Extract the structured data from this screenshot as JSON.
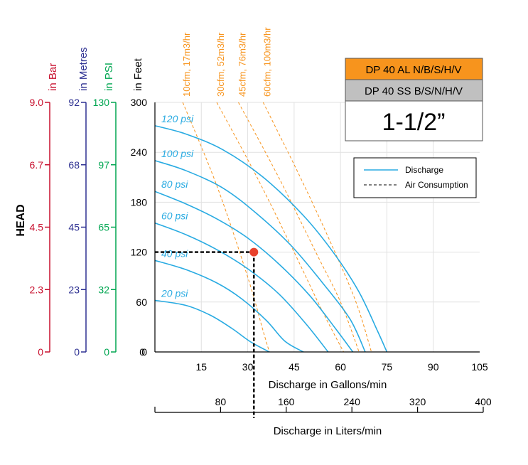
{
  "colors": {
    "bar": "#c8102e",
    "metres": "#2e3192",
    "psi": "#00a651",
    "feet": "#000000",
    "curve": "#29abe2",
    "air": "#f7941d",
    "orange_box": "#f7941d",
    "gray_box": "#c0c0c0",
    "point": "#e8412c"
  },
  "header": {
    "model_al": "DP 40 AL N/B/S/H/V",
    "model_ss": "DP 40 SS B/S/N/H/V",
    "size": "1-1/2”"
  },
  "legend": {
    "discharge": "Discharge",
    "air": "Air Consumption"
  },
  "chart_data": {
    "type": "line",
    "head_label": "HEAD",
    "x_title": "Discharge in Gallons/min",
    "x2_title": "Discharge in Liters/min",
    "xlim": [
      0,
      105
    ],
    "ylim": [
      0,
      300
    ],
    "x_ticks": [
      15,
      30,
      45,
      60,
      75,
      90,
      105
    ],
    "x2_ticks": [
      80,
      160,
      240,
      320,
      400
    ],
    "axes": [
      {
        "key": "bar",
        "title": "in Bar",
        "ticks": [
          "0",
          "2.3",
          "4.5",
          "6.7",
          "9.0"
        ]
      },
      {
        "key": "metres",
        "title": "in Metres",
        "ticks": [
          "0",
          "23",
          "45",
          "68",
          "92"
        ]
      },
      {
        "key": "psi",
        "title": "in PSI",
        "ticks": [
          "0",
          "32",
          "65",
          "97",
          "130"
        ]
      },
      {
        "key": "feet",
        "title": "in Feet",
        "ticks": [
          "0",
          "60",
          "120",
          "180",
          "240",
          "300"
        ]
      }
    ],
    "series": [
      {
        "name": "120 psi",
        "points": [
          [
            0,
            272
          ],
          [
            10,
            262
          ],
          [
            22,
            243
          ],
          [
            35,
            210
          ],
          [
            48,
            164
          ],
          [
            58,
            118
          ],
          [
            66,
            72
          ],
          [
            72,
            25
          ],
          [
            75,
            0
          ]
        ]
      },
      {
        "name": "100 psi",
        "points": [
          [
            0,
            230
          ],
          [
            10,
            218
          ],
          [
            22,
            197
          ],
          [
            33,
            166
          ],
          [
            44,
            128
          ],
          [
            54,
            84
          ],
          [
            63,
            40
          ],
          [
            68,
            0
          ]
        ]
      },
      {
        "name": "80 psi",
        "points": [
          [
            0,
            193
          ],
          [
            10,
            178
          ],
          [
            20,
            160
          ],
          [
            30,
            137
          ],
          [
            40,
            106
          ],
          [
            50,
            68
          ],
          [
            58,
            30
          ],
          [
            64,
            0
          ]
        ]
      },
      {
        "name": "60 psi",
        "points": [
          [
            0,
            155
          ],
          [
            10,
            141
          ],
          [
            20,
            123
          ],
          [
            30,
            100
          ],
          [
            40,
            70
          ],
          [
            49,
            33
          ],
          [
            56,
            0
          ]
        ]
      },
      {
        "name": "40 psi",
        "points": [
          [
            0,
            110
          ],
          [
            10,
            99
          ],
          [
            20,
            83
          ],
          [
            28,
            64
          ],
          [
            36,
            38
          ],
          [
            42,
            13
          ],
          [
            48,
            0
          ]
        ]
      },
      {
        "name": "20 psi",
        "points": [
          [
            0,
            62
          ],
          [
            10,
            56
          ],
          [
            18,
            44
          ],
          [
            25,
            28
          ],
          [
            31,
            12
          ],
          [
            37,
            0
          ]
        ]
      }
    ],
    "air_lines": [
      {
        "name": "10cfm, 17m3/hr",
        "points": [
          [
            9,
            300
          ],
          [
            20,
            200
          ],
          [
            30,
            90
          ],
          [
            35,
            25
          ],
          [
            37,
            0
          ]
        ]
      },
      {
        "name": "30cfm, 52m3/hr",
        "points": [
          [
            20,
            300
          ],
          [
            33,
            210
          ],
          [
            45,
            120
          ],
          [
            54,
            50
          ],
          [
            61,
            0
          ]
        ]
      },
      {
        "name": "45cfm, 76m3/hr",
        "points": [
          [
            27,
            300
          ],
          [
            40,
            210
          ],
          [
            52,
            120
          ],
          [
            60,
            60
          ],
          [
            66,
            0
          ]
        ]
      },
      {
        "name": "60cfm, 100m3/hr",
        "points": [
          [
            35,
            300
          ],
          [
            47,
            210
          ],
          [
            57,
            130
          ],
          [
            65,
            60
          ],
          [
            70,
            0
          ]
        ]
      }
    ],
    "operating_point": {
      "gpm": 32,
      "feet": 120,
      "lpm": 121
    }
  }
}
